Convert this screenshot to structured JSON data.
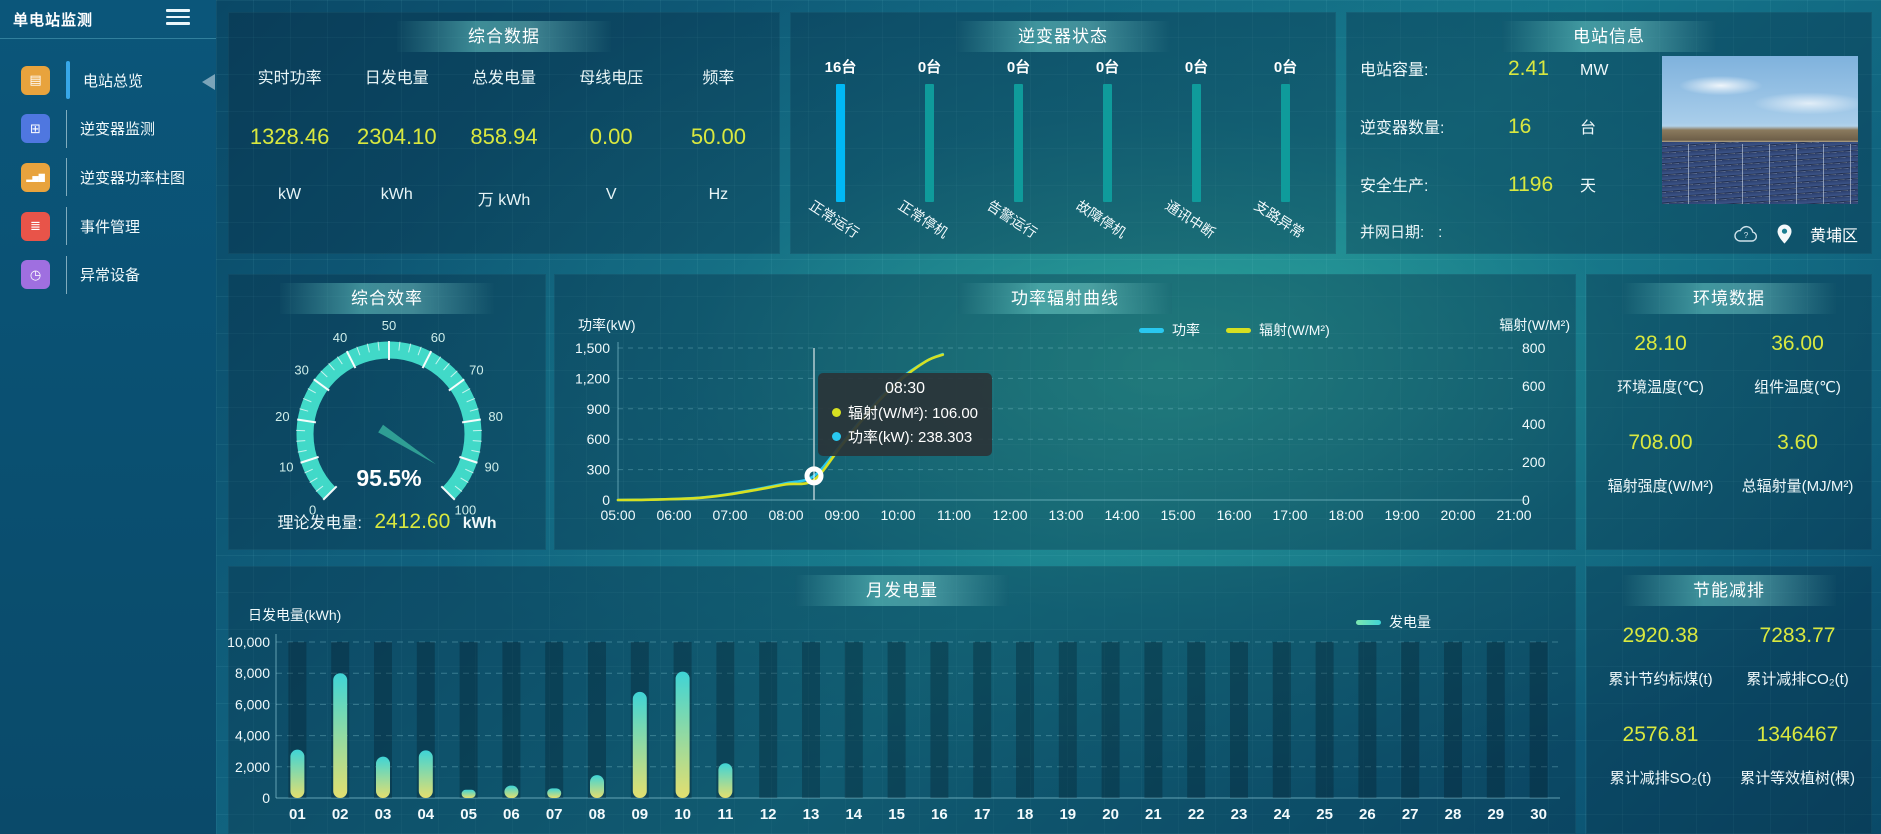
{
  "sidebar": {
    "title": "单电站监测",
    "items": [
      {
        "label": "电站总览",
        "icon": "station-overview-icon",
        "color": "#e8a33d",
        "glyph": "▤",
        "active": true
      },
      {
        "label": "逆变器监测",
        "icon": "inverter-monitor-icon",
        "color": "#4f77e0",
        "glyph": "⊞",
        "active": false
      },
      {
        "label": "逆变器功率柱图",
        "icon": "inverter-power-bars-icon",
        "color": "#e8a33d",
        "glyph": "▂▅▇",
        "active": false
      },
      {
        "label": "事件管理",
        "icon": "event-management-icon",
        "color": "#e85449",
        "glyph": "≣",
        "active": false
      },
      {
        "label": "异常设备",
        "icon": "abnormal-device-icon",
        "color": "#9f6fe0",
        "glyph": "◷",
        "active": false
      }
    ]
  },
  "summary": {
    "title": "综合数据",
    "metrics": [
      {
        "label": "实时功率",
        "value": "1328.46",
        "unit": "kW"
      },
      {
        "label": "日发电量",
        "value": "2304.10",
        "unit": "kWh"
      },
      {
        "label": "总发电量",
        "value": "858.94",
        "unit": "万 kWh"
      },
      {
        "label": "母线电压",
        "value": "0.00",
        "unit": "V"
      },
      {
        "label": "频率",
        "value": "50.00",
        "unit": "Hz"
      }
    ]
  },
  "inverter_status": {
    "title": "逆变器状态",
    "highlight_color": "#00b8f5",
    "track_color": "#0f9b9b",
    "bars": [
      {
        "count": "16台",
        "label": "正常运行",
        "highlight": true
      },
      {
        "count": "0台",
        "label": "正常停机",
        "highlight": false
      },
      {
        "count": "0台",
        "label": "告警运行",
        "highlight": false
      },
      {
        "count": "0台",
        "label": "故障停机",
        "highlight": false
      },
      {
        "count": "0台",
        "label": "通讯中断",
        "highlight": false
      },
      {
        "count": "0台",
        "label": "支路异常",
        "highlight": false
      }
    ]
  },
  "station_info": {
    "title": "电站信息",
    "rows": [
      {
        "label": "电站容量:",
        "value": "2.41",
        "unit": "MW"
      },
      {
        "label": "逆变器数量:",
        "value": "16",
        "unit": "台"
      },
      {
        "label": "安全生产:",
        "value": "1196",
        "unit": "天"
      }
    ],
    "grid_date_label": "并网日期:",
    "grid_date_value": ":",
    "location": "黄埔区"
  },
  "efficiency": {
    "title": "综合效率",
    "value": 95.5,
    "value_text": "95.5%",
    "min": 0,
    "max": 100,
    "footer_label": "理论发电量:",
    "footer_value": "2412.60",
    "footer_unit": "kWh"
  },
  "environment": {
    "title": "环境数据",
    "metrics": [
      {
        "value": "28.10",
        "label": "环境温度(℃)"
      },
      {
        "value": "36.00",
        "label": "组件温度(℃)"
      },
      {
        "value": "708.00",
        "label": "辐射强度(W/M²)"
      },
      {
        "value": "3.60",
        "label": "总辐射量(MJ/M²)"
      }
    ]
  },
  "saving": {
    "title": "节能减排",
    "metrics": [
      {
        "value": "2920.38",
        "label": "累计节约标煤(t)"
      },
      {
        "value": "7283.77",
        "label": "累计减排CO₂(t)"
      },
      {
        "value": "2576.81",
        "label": "累计减排SO₂(t)"
      },
      {
        "value": "1346467",
        "label": "累计等效植树(棵)"
      }
    ]
  },
  "chart_data": [
    {
      "type": "line",
      "title": "功率辐射曲线",
      "x_ticks": [
        "05:00",
        "06:00",
        "07:00",
        "08:00",
        "09:00",
        "10:00",
        "11:00",
        "12:00",
        "13:00",
        "14:00",
        "15:00",
        "16:00",
        "17:00",
        "18:00",
        "19:00",
        "20:00",
        "21:00"
      ],
      "x_range": [
        5,
        21
      ],
      "left_axis": {
        "label": "功率(kW)",
        "ticks": [
          0,
          300,
          600,
          900,
          1200,
          1500
        ],
        "max": 1500
      },
      "right_axis": {
        "label": "辐射(W/M²)",
        "ticks": [
          0,
          200,
          400,
          600,
          800
        ],
        "max": 800
      },
      "legend": [
        {
          "name": "功率",
          "color": "#29c8f0"
        },
        {
          "name": "辐射(W/M²)",
          "color": "#d6e021"
        }
      ],
      "series": [
        {
          "name": "功率",
          "axis": "left",
          "color": "#29c8f0",
          "points": [
            [
              5,
              0
            ],
            [
              5.5,
              3
            ],
            [
              6,
              10
            ],
            [
              6.5,
              25
            ],
            [
              7,
              60
            ],
            [
              7.5,
              110
            ],
            [
              8,
              165
            ],
            [
              8.5,
              238.3
            ],
            [
              9,
              560
            ],
            [
              9.5,
              900
            ],
            [
              10,
              1180
            ],
            [
              10.5,
              1370
            ],
            [
              10.8,
              1440
            ]
          ]
        },
        {
          "name": "辐射",
          "axis": "right",
          "color": "#d6e021",
          "points": [
            [
              5,
              0
            ],
            [
              5.5,
              1
            ],
            [
              6,
              5
            ],
            [
              6.5,
              12
            ],
            [
              7,
              30
            ],
            [
              7.5,
              55
            ],
            [
              8,
              82
            ],
            [
              8.5,
              106
            ],
            [
              9,
              290
            ],
            [
              9.5,
              470
            ],
            [
              10,
              620
            ],
            [
              10.5,
              730
            ],
            [
              10.8,
              765
            ]
          ]
        }
      ],
      "tooltip": {
        "time": "08:30",
        "x": 8.5,
        "marker_value": 238.3,
        "rows": [
          {
            "label": "辐射(W/M²)",
            "value": "106.00",
            "color": "#d6e021"
          },
          {
            "label": "功率(kW)",
            "value": "238.303",
            "color": "#29c8f0"
          }
        ]
      }
    },
    {
      "type": "bar",
      "title": "月发电量",
      "ylabel": "日发电量(kWh)",
      "categories": [
        "01",
        "02",
        "03",
        "04",
        "05",
        "06",
        "07",
        "08",
        "09",
        "10",
        "11",
        "12",
        "13",
        "14",
        "15",
        "16",
        "17",
        "18",
        "19",
        "20",
        "21",
        "22",
        "23",
        "24",
        "25",
        "26",
        "27",
        "28",
        "29",
        "30"
      ],
      "values": [
        3100,
        8000,
        2650,
        3050,
        530,
        790,
        620,
        1470,
        6800,
        8100,
        2230,
        0,
        0,
        0,
        0,
        0,
        0,
        0,
        0,
        0,
        0,
        0,
        0,
        0,
        0,
        0,
        0,
        0,
        0,
        0
      ],
      "yticks": [
        0,
        2000,
        4000,
        6000,
        8000,
        10000
      ],
      "ylim": [
        0,
        10000
      ],
      "legend": [
        {
          "name": "发电量",
          "color_top": "#3fd4d6",
          "color_bottom": "#7de8b0"
        }
      ],
      "bar_gradient": {
        "top": "#3fd4d6",
        "bottom": "#e3df6f"
      }
    }
  ],
  "gauge_chart": {
    "type": "gauge",
    "title": "综合效率",
    "value": 95.5,
    "range": [
      0,
      100
    ],
    "tick_step": 10
  }
}
